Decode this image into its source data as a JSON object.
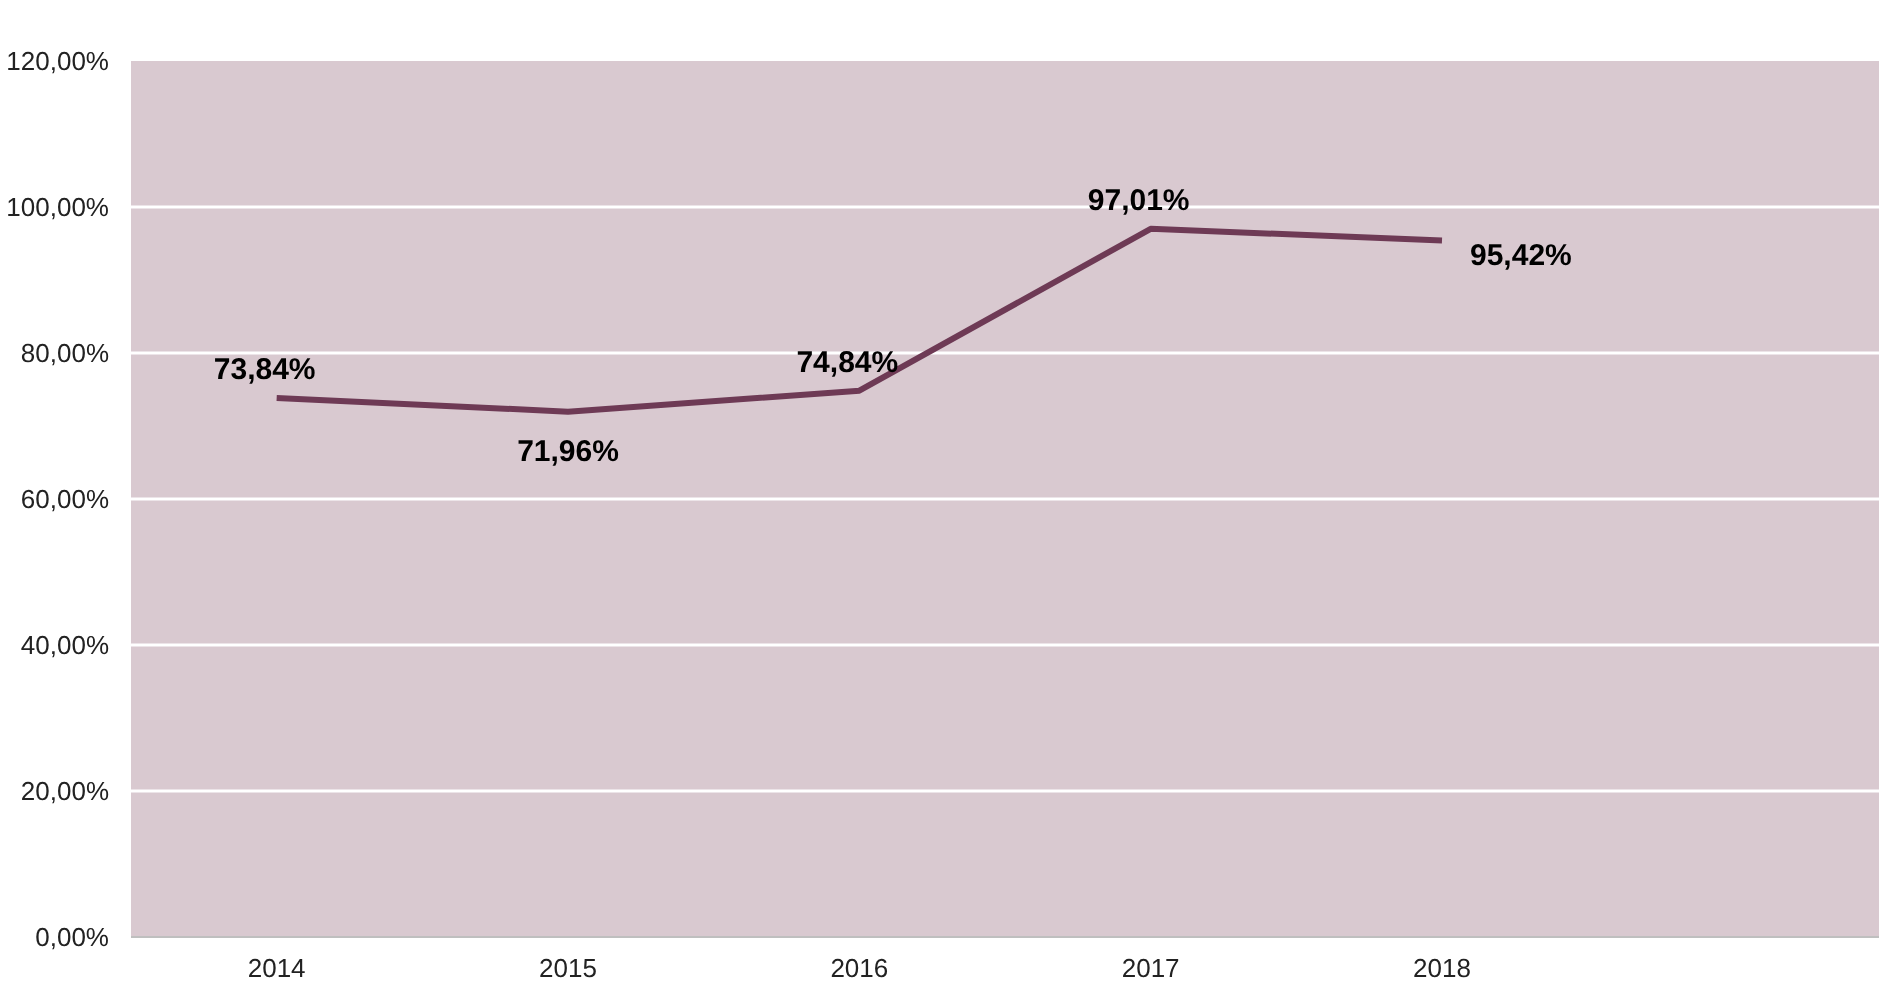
{
  "chart_data": {
    "type": "line",
    "categories": [
      "2014",
      "2015",
      "2016",
      "2017",
      "2018",
      null
    ],
    "series": [
      {
        "color": "#6e3a55",
        "values": [
          73.84,
          71.96,
          74.84,
          97.01,
          95.42,
          null
        ],
        "value_labels": [
          "73,84%",
          "71,96%",
          "74,84%",
          "97,01%",
          "95,42%",
          null
        ]
      }
    ],
    "ylim": [
      0,
      120
    ],
    "yticks": [
      {
        "value": 0,
        "label": "0,00%"
      },
      {
        "value": 20,
        "label": "20,00%"
      },
      {
        "value": 40,
        "label": "40,00%"
      },
      {
        "value": 60,
        "label": "60,00%"
      },
      {
        "value": 80,
        "label": "80,00%"
      },
      {
        "value": 100,
        "label": "100,00%"
      },
      {
        "value": 120,
        "label": "120,00%"
      }
    ],
    "grid": "y",
    "marker": "none",
    "line_style": "solid"
  }
}
